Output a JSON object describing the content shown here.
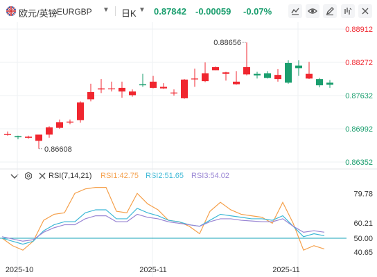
{
  "header": {
    "symbol_name": "欧元/英镑",
    "symbol_code": "EURGBP",
    "period": "日K",
    "last_price": "0.87842",
    "change": "-0.00059",
    "change_pct": "-0.07%"
  },
  "indicator": {
    "name": "RSI(7,14,21)",
    "rsi1_label": "RSI1:42.75",
    "rsi2_label": "RSI2:51.65",
    "rsi3_label": "RSI3:54.02"
  },
  "colors": {
    "up": "#f0262f",
    "down": "#1a9e6e",
    "rsi1": "#f5a04b",
    "rsi2": "#3cb8d6",
    "rsi3": "#9a86d4",
    "rsi_mid": "#14a3b8",
    "grid": "#eef0f3",
    "axis_text": "#333333"
  },
  "icons": [
    "flag-uk-icon",
    "dropdown-icon",
    "indicator-menu-icon",
    "settings-icon",
    "close-icon",
    "line-tool-icon",
    "eye-icon",
    "pencil-icon",
    "down-trend-icon",
    "collapse-icon"
  ],
  "chart_data": [
    {
      "type": "candlestick",
      "y_ticks": [
        "0.88912",
        "0.88272",
        "0.87632",
        "0.86992",
        "0.86352"
      ],
      "ylim": [
        0.86352,
        0.88912
      ],
      "annotations": [
        {
          "label": "0.88656",
          "at_index": 23,
          "kind": "high"
        },
        {
          "label": "0.86608",
          "at_index": 3,
          "kind": "low"
        }
      ],
      "candles": [
        {
          "o": 0.8689,
          "h": 0.8694,
          "l": 0.8686,
          "c": 0.8689
        },
        {
          "o": 0.8685,
          "h": 0.8686,
          "l": 0.8679,
          "c": 0.8683
        },
        {
          "o": 0.8682,
          "h": 0.8686,
          "l": 0.868,
          "c": 0.8684
        },
        {
          "o": 0.8676,
          "h": 0.8686,
          "l": 0.86608,
          "c": 0.8688
        },
        {
          "o": 0.8688,
          "h": 0.8704,
          "l": 0.8682,
          "c": 0.8702
        },
        {
          "o": 0.8701,
          "h": 0.8717,
          "l": 0.8699,
          "c": 0.8712
        },
        {
          "o": 0.8712,
          "h": 0.8717,
          "l": 0.8708,
          "c": 0.8713
        },
        {
          "o": 0.8716,
          "h": 0.8752,
          "l": 0.8711,
          "c": 0.875
        },
        {
          "o": 0.8756,
          "h": 0.8786,
          "l": 0.8752,
          "c": 0.877
        },
        {
          "o": 0.8775,
          "h": 0.8795,
          "l": 0.8768,
          "c": 0.8777
        },
        {
          "o": 0.8777,
          "h": 0.879,
          "l": 0.8771,
          "c": 0.8777
        },
        {
          "o": 0.8771,
          "h": 0.879,
          "l": 0.8759,
          "c": 0.8778
        },
        {
          "o": 0.8764,
          "h": 0.8775,
          "l": 0.8761,
          "c": 0.8771
        },
        {
          "o": 0.8785,
          "h": 0.8805,
          "l": 0.878,
          "c": 0.8783
        },
        {
          "o": 0.8778,
          "h": 0.8801,
          "l": 0.8777,
          "c": 0.879
        },
        {
          "o": 0.8777,
          "h": 0.8787,
          "l": 0.8776,
          "c": 0.878
        },
        {
          "o": 0.8768,
          "h": 0.8775,
          "l": 0.8763,
          "c": 0.8769
        },
        {
          "o": 0.8758,
          "h": 0.8795,
          "l": 0.8757,
          "c": 0.8794
        },
        {
          "o": 0.8796,
          "h": 0.8815,
          "l": 0.878,
          "c": 0.8796
        },
        {
          "o": 0.8791,
          "h": 0.8827,
          "l": 0.8789,
          "c": 0.8806
        },
        {
          "o": 0.8812,
          "h": 0.8819,
          "l": 0.8812,
          "c": 0.8818
        },
        {
          "o": 0.8805,
          "h": 0.8809,
          "l": 0.8792,
          "c": 0.8808
        },
        {
          "o": 0.8785,
          "h": 0.881,
          "l": 0.8784,
          "c": 0.879
        },
        {
          "o": 0.8804,
          "h": 0.88656,
          "l": 0.8802,
          "c": 0.8818
        },
        {
          "o": 0.8805,
          "h": 0.8809,
          "l": 0.8796,
          "c": 0.8802
        },
        {
          "o": 0.8806,
          "h": 0.881,
          "l": 0.8796,
          "c": 0.8797
        },
        {
          "o": 0.8795,
          "h": 0.8814,
          "l": 0.879,
          "c": 0.8803
        },
        {
          "o": 0.8826,
          "h": 0.8831,
          "l": 0.8786,
          "c": 0.8788
        },
        {
          "o": 0.8821,
          "h": 0.8831,
          "l": 0.8801,
          "c": 0.8816
        },
        {
          "o": 0.8796,
          "h": 0.8828,
          "l": 0.8795,
          "c": 0.8805
        },
        {
          "o": 0.8795,
          "h": 0.8797,
          "l": 0.8779,
          "c": 0.8783
        },
        {
          "o": 0.8788,
          "h": 0.8793,
          "l": 0.8778,
          "c": 0.8784
        }
      ]
    },
    {
      "type": "line",
      "title": "RSI(7,14,21)",
      "y_ticks": [
        "79.78",
        "60.21",
        "50.00",
        "40.65"
      ],
      "ylim": [
        37,
        88
      ],
      "x_tick_labels": [
        {
          "label": "2025-10",
          "at_index": 0
        },
        {
          "label": "2025-11",
          "at_index": 13
        },
        {
          "label": "2025-11",
          "at_index": 27
        }
      ],
      "series": [
        {
          "name": "RSI1",
          "values": [
            50.0,
            45.0,
            42.0,
            48.0,
            62.0,
            66.0,
            67.0,
            80.0,
            83.0,
            84.0,
            84.0,
            68.0,
            67.0,
            80.0,
            73.0,
            69.0,
            62.0,
            61.0,
            58.0,
            53.0,
            68.0,
            74.0,
            69.0,
            66.0,
            65.0,
            64.0,
            60.0,
            74.0,
            60.0,
            42.0,
            45.0,
            42.75
          ]
        },
        {
          "name": "RSI2",
          "values": [
            50.0,
            48.0,
            46.0,
            48.0,
            55.0,
            59.0,
            61.0,
            61.0,
            67.0,
            69.0,
            69.0,
            63.0,
            63.0,
            70.0,
            67.0,
            65.0,
            62.0,
            61.0,
            59.0,
            58.0,
            62.0,
            66.0,
            65.0,
            64.0,
            63.0,
            63.0,
            62.0,
            65.0,
            58.0,
            51.0,
            53.0,
            51.65
          ]
        },
        {
          "name": "RSI3",
          "values": [
            51.0,
            49.5,
            48.0,
            49.0,
            54.0,
            57.0,
            59.0,
            59.0,
            63.0,
            65.0,
            65.0,
            61.0,
            61.0,
            66.0,
            64.0,
            63.0,
            61.0,
            60.0,
            59.0,
            58.0,
            61.0,
            63.0,
            63.0,
            62.0,
            61.5,
            61.0,
            61.0,
            63.0,
            58.0,
            54.0,
            55.0,
            54.02
          ]
        }
      ]
    }
  ]
}
